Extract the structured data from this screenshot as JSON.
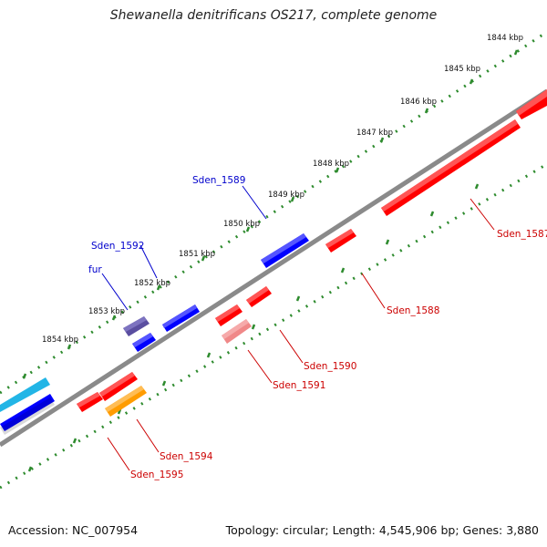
{
  "title": "Shewanella denitrificans OS217, complete genome",
  "footer": {
    "accession": "Accession: NC_007954",
    "topology": "Topology: circular; Length: 4,545,906 bp; Genes: 3,880"
  },
  "colors": {
    "backbone": "#8c8c8c",
    "scale_ticks": "#2e8b2e",
    "plus_strand_gene": "#0000ff",
    "minus_strand_gene": "#ff0000",
    "label_plus": "#0000cc",
    "label_minus": "#cc0000",
    "fur": "#5a4ea0",
    "light_blue": "#22b5e6",
    "orange": "#ff9c00",
    "pink": "#f08888"
  },
  "scale_labels": [
    "1844 kbp",
    "1845 kbp",
    "1846 kbp",
    "1847 kbp",
    "1848 kbp",
    "1849 kbp",
    "1850 kbp",
    "1851 kbp",
    "1852 kbp",
    "1853 kbp",
    "1854 kbp"
  ],
  "gene_labels": [
    "Sden_1589",
    "Sden_1592",
    "fur",
    "Sden_1587",
    "Sden_1588",
    "Sden_1590",
    "Sden_1591",
    "Sden_1594",
    "Sden_1595"
  ],
  "genes": [
    {
      "color": "blue"
    },
    {
      "color": "light_blue"
    },
    {
      "color": "blue"
    },
    {
      "color": "blue"
    },
    {
      "color": "fur"
    },
    {
      "color": "blue"
    },
    {
      "color": "red"
    },
    {
      "color": "red"
    },
    {
      "color": "red"
    },
    {
      "color": "red"
    },
    {
      "color": "red"
    },
    {
      "color": "red"
    },
    {
      "color": "red"
    },
    {
      "color": "pink"
    },
    {
      "color": "orange"
    }
  ]
}
